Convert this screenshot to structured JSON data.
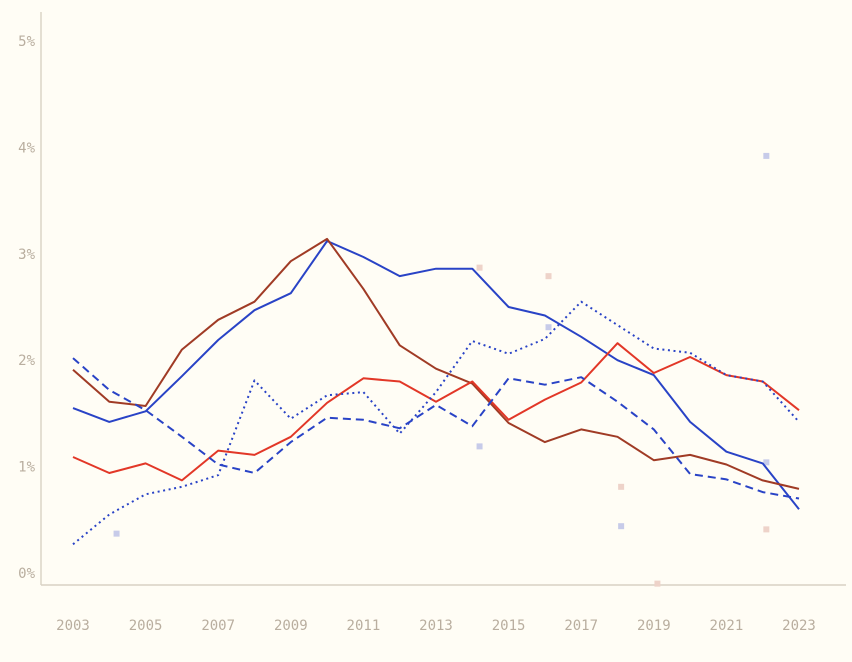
{
  "page": {
    "background_color": "#fffdf5",
    "axis_line_color": "#d8d2c4",
    "tick_label_color": "#b9ae9f"
  },
  "chart_data": {
    "type": "line",
    "title": "",
    "xlabel": "",
    "ylabel": "",
    "xlim": [
      2003,
      2023
    ],
    "ylim": [
      0,
      5
    ],
    "grid": false,
    "legend_position": "none",
    "x": [
      2003,
      2004,
      2005,
      2006,
      2007,
      2008,
      2009,
      2010,
      2011,
      2012,
      2013,
      2014,
      2015,
      2016,
      2017,
      2018,
      2019,
      2020,
      2021,
      2022,
      2023
    ],
    "x_ticks": [
      {
        "label": "2003",
        "value": 2003
      },
      {
        "label": "2005",
        "value": 2005
      },
      {
        "label": "2007",
        "value": 2007
      },
      {
        "label": "2009",
        "value": 2009
      },
      {
        "label": "2011",
        "value": 2011
      },
      {
        "label": "2013",
        "value": 2013
      },
      {
        "label": "2015",
        "value": 2015
      },
      {
        "label": "2017",
        "value": 2017
      },
      {
        "label": "2019",
        "value": 2019
      },
      {
        "label": "2021",
        "value": 2021
      },
      {
        "label": "2023",
        "value": 2023
      }
    ],
    "y_ticks": [
      {
        "label": "0%",
        "value": 0
      },
      {
        "label": "1%",
        "value": 1
      },
      {
        "label": "2%",
        "value": 2
      },
      {
        "label": "3%",
        "value": 3
      },
      {
        "label": "4%",
        "value": 4
      },
      {
        "label": "5%",
        "value": 5
      }
    ],
    "series": [
      {
        "name": "blue-solid",
        "color": "#2943c6",
        "line_style": "solid",
        "values": [
          1.55,
          1.42,
          1.52,
          1.85,
          2.19,
          2.47,
          2.63,
          3.12,
          2.97,
          2.79,
          2.86,
          2.86,
          2.5,
          2.42,
          2.22,
          2.0,
          1.86,
          1.42,
          1.14,
          1.03,
          0.6
        ]
      },
      {
        "name": "dark-red-solid",
        "color": "#a03b25",
        "line_style": "solid",
        "values": [
          1.91,
          1.61,
          1.57,
          2.1,
          2.38,
          2.55,
          2.93,
          3.14,
          2.67,
          2.14,
          1.92,
          1.78,
          1.41,
          1.23,
          1.35,
          1.28,
          1.06,
          1.11,
          1.02,
          0.87,
          0.79
        ]
      },
      {
        "name": "red-solid",
        "color": "#e23727",
        "line_style": "solid",
        "values": [
          1.09,
          0.94,
          1.03,
          0.87,
          1.15,
          1.11,
          1.28,
          1.6,
          1.83,
          1.8,
          1.61,
          1.8,
          1.44,
          1.63,
          1.79,
          2.16,
          1.88,
          2.03,
          1.86,
          1.8,
          1.53
        ]
      },
      {
        "name": "blue-dashed",
        "color": "#2943c6",
        "line_style": "dashed",
        "values": [
          2.02,
          1.72,
          1.53,
          1.28,
          1.02,
          0.94,
          1.23,
          1.46,
          1.44,
          1.36,
          1.58,
          1.38,
          1.83,
          1.77,
          1.84,
          1.61,
          1.35,
          0.93,
          0.88,
          0.76,
          0.7
        ]
      },
      {
        "name": "blue-dotted",
        "color": "#2943c6",
        "line_style": "dotted",
        "values": [
          0.27,
          0.55,
          0.74,
          0.81,
          0.92,
          1.81,
          1.45,
          1.67,
          1.7,
          1.31,
          1.7,
          2.18,
          2.06,
          2.2,
          2.55,
          2.33,
          2.11,
          2.07,
          1.86,
          1.8,
          1.42
        ]
      }
    ],
    "scatter": [
      {
        "name": "lavender-squares",
        "color": "#c7cbe9",
        "marker": "square",
        "points": [
          [
            2004.2,
            0.37
          ],
          [
            2014.2,
            1.19
          ],
          [
            2016.1,
            2.31
          ],
          [
            2018.1,
            0.44
          ],
          [
            2022.1,
            1.04
          ],
          [
            2022.1,
            3.92
          ]
        ]
      },
      {
        "name": "pink-squares",
        "color": "#eed3c9",
        "marker": "square",
        "points": [
          [
            2014.2,
            2.87
          ],
          [
            2016.1,
            2.79
          ],
          [
            2018.1,
            0.81
          ],
          [
            2019.1,
            -0.1
          ],
          [
            2022.1,
            0.41
          ]
        ]
      }
    ]
  }
}
